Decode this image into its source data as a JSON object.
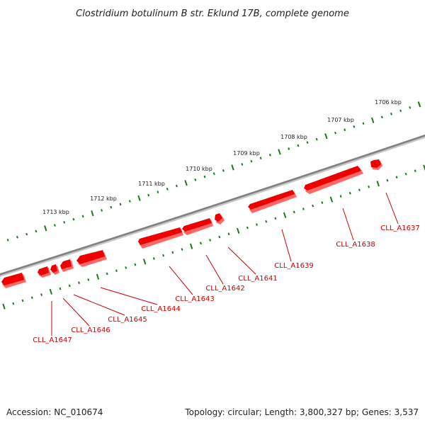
{
  "title": "Clostridium botulinum B str. Eklund 17B, complete genome",
  "scale_labels": [
    {
      "id": "1706",
      "text": "1706 kbp"
    },
    {
      "id": "1707",
      "text": "1707 kbp"
    },
    {
      "id": "1708",
      "text": "1708 kbp"
    },
    {
      "id": "1709",
      "text": "1709 kbp"
    },
    {
      "id": "1710",
      "text": "1710 kbp"
    },
    {
      "id": "1711",
      "text": "1711 kbp"
    },
    {
      "id": "1712",
      "text": "1712 kbp"
    },
    {
      "id": "1713",
      "text": "1713 kbp"
    }
  ],
  "genes": [
    {
      "id": "1637",
      "label": "CLL_A1637"
    },
    {
      "id": "1638",
      "label": "CLL_A1638"
    },
    {
      "id": "1639",
      "label": "CLL_A1639"
    },
    {
      "id": "1641",
      "label": "CLL_A1641"
    },
    {
      "id": "1642",
      "label": "CLL_A1642"
    },
    {
      "id": "1643",
      "label": "CLL_A1643"
    },
    {
      "id": "1644",
      "label": "CLL_A1644"
    },
    {
      "id": "1645",
      "label": "CLL_A1645"
    },
    {
      "id": "1646",
      "label": "CLL_A1646"
    },
    {
      "id": "1647",
      "label": "CLL_A1647"
    }
  ],
  "footer": {
    "accession": "Accession: NC_010674",
    "topology": "Topology: circular; Length: 3,800,327 bp; Genes: 3,537"
  },
  "colors": {
    "gene": "#ee0000",
    "gene_shadow": "#ff6666",
    "backbone": "#808080",
    "scale_tick": "#1a7a1a"
  }
}
